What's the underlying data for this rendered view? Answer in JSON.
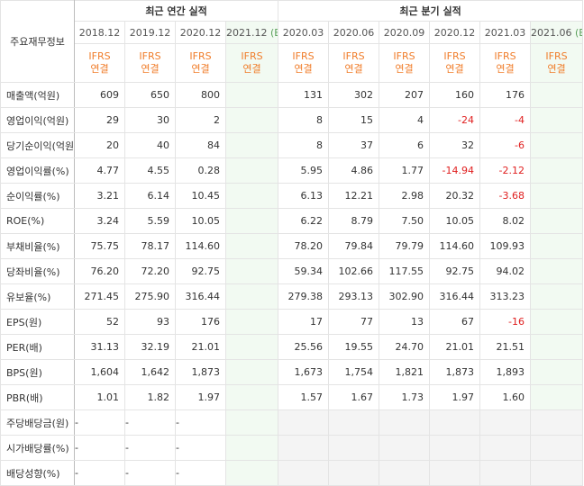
{
  "header": {
    "row_label": "주요재무정보",
    "annual_title": "최근 연간 실적",
    "quarter_title": "최근 분기 실적",
    "annual_periods": [
      "2018.12",
      "2019.12",
      "2020.12",
      "2021.12"
    ],
    "quarter_periods": [
      "2020.03",
      "2020.06",
      "2020.09",
      "2020.12",
      "2021.03",
      "2021.06"
    ],
    "estimate_mark": "(E)",
    "ifrs_top": "IFRS",
    "ifrs_bottom": "연결"
  },
  "rows": [
    {
      "label": "매출액(억원)",
      "annual": [
        "609",
        "650",
        "800",
        ""
      ],
      "quarter": [
        "131",
        "302",
        "207",
        "160",
        "176",
        ""
      ]
    },
    {
      "label": "영업이익(억원)",
      "annual": [
        "29",
        "30",
        "2",
        ""
      ],
      "quarter": [
        "8",
        "15",
        "4",
        "-24",
        "-4",
        ""
      ]
    },
    {
      "label": "당기순이익(억원)",
      "annual": [
        "20",
        "40",
        "84",
        ""
      ],
      "quarter": [
        "8",
        "37",
        "6",
        "32",
        "-6",
        ""
      ]
    },
    {
      "label": "영업이익률(%)",
      "annual": [
        "4.77",
        "4.55",
        "0.28",
        ""
      ],
      "quarter": [
        "5.95",
        "4.86",
        "1.77",
        "-14.94",
        "-2.12",
        ""
      ]
    },
    {
      "label": "순이익률(%)",
      "annual": [
        "3.21",
        "6.14",
        "10.45",
        ""
      ],
      "quarter": [
        "6.13",
        "12.21",
        "2.98",
        "20.32",
        "-3.68",
        ""
      ]
    },
    {
      "label": "ROE(%)",
      "annual": [
        "3.24",
        "5.59",
        "10.05",
        ""
      ],
      "quarter": [
        "6.22",
        "8.79",
        "7.50",
        "10.05",
        "8.02",
        ""
      ]
    },
    {
      "label": "부채비율(%)",
      "annual": [
        "75.75",
        "78.17",
        "114.60",
        ""
      ],
      "quarter": [
        "78.20",
        "79.84",
        "79.79",
        "114.60",
        "109.93",
        ""
      ]
    },
    {
      "label": "당좌비율(%)",
      "annual": [
        "76.20",
        "72.20",
        "92.75",
        ""
      ],
      "quarter": [
        "59.34",
        "102.66",
        "117.55",
        "92.75",
        "94.02",
        ""
      ]
    },
    {
      "label": "유보율(%)",
      "annual": [
        "271.45",
        "275.90",
        "316.44",
        ""
      ],
      "quarter": [
        "279.38",
        "293.13",
        "302.90",
        "316.44",
        "313.23",
        ""
      ]
    },
    {
      "label": "EPS(원)",
      "annual": [
        "52",
        "93",
        "176",
        ""
      ],
      "quarter": [
        "17",
        "77",
        "13",
        "67",
        "-16",
        ""
      ]
    },
    {
      "label": "PER(배)",
      "annual": [
        "31.13",
        "32.19",
        "21.01",
        ""
      ],
      "quarter": [
        "25.56",
        "19.55",
        "24.70",
        "21.01",
        "21.51",
        ""
      ]
    },
    {
      "label": "BPS(원)",
      "annual": [
        "1,604",
        "1,642",
        "1,873",
        ""
      ],
      "quarter": [
        "1,673",
        "1,754",
        "1,821",
        "1,873",
        "1,893",
        ""
      ]
    },
    {
      "label": "PBR(배)",
      "annual": [
        "1.01",
        "1.82",
        "1.97",
        ""
      ],
      "quarter": [
        "1.57",
        "1.67",
        "1.73",
        "1.97",
        "1.60",
        ""
      ]
    },
    {
      "label": "주당배당금(원)",
      "annual": [
        "-",
        "-",
        "-",
        ""
      ],
      "quarter": [
        "",
        "",
        "",
        "",
        "",
        ""
      ]
    },
    {
      "label": "시가배당률(%)",
      "annual": [
        "-",
        "-",
        "-",
        ""
      ],
      "quarter": [
        "",
        "",
        "",
        "",
        "",
        ""
      ]
    },
    {
      "label": "배당성향(%)",
      "annual": [
        "-",
        "-",
        "-",
        ""
      ],
      "quarter": [
        "",
        "",
        "",
        "",
        "",
        ""
      ]
    }
  ],
  "colors": {
    "negative": "#e02020",
    "ifrs": "#f07d2a",
    "estimate_bg": "#f2faf2",
    "estimate_mark": "#5aa05a",
    "gray_bg": "#f4f4f4"
  }
}
